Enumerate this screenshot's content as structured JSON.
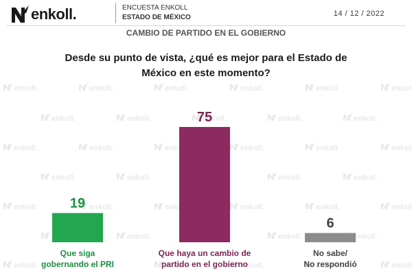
{
  "header": {
    "logo_text": "enkoll.",
    "survey_label": "ENCUESTA ENKOLL",
    "state": "ESTADO DE MÉXICO",
    "date": "14 / 12 / 2022"
  },
  "watermark_text": "enkoll.",
  "colors": {
    "green": "#22a650",
    "purple": "#8e2a62",
    "gray": "#8c8c8c",
    "green_label": "#1c8f43",
    "purple_label": "#7a2456",
    "gray_label": "#444444"
  },
  "chart_data": {
    "type": "bar",
    "title": "CAMBIO DE PARTIDO EN EL GOBIERNO",
    "question": "Desde su punto de vista, ¿qué es mejor para el Estado de México en este momento?",
    "categories": [
      [
        "Que siga",
        "gobernando el PRI"
      ],
      [
        "Que haya un cambio de",
        "partido en el gobierno"
      ],
      [
        "No sabe/",
        "No respondió"
      ]
    ],
    "values": [
      19,
      75,
      6
    ],
    "ylim": [
      0,
      100
    ],
    "grid": false,
    "legend": "none"
  }
}
